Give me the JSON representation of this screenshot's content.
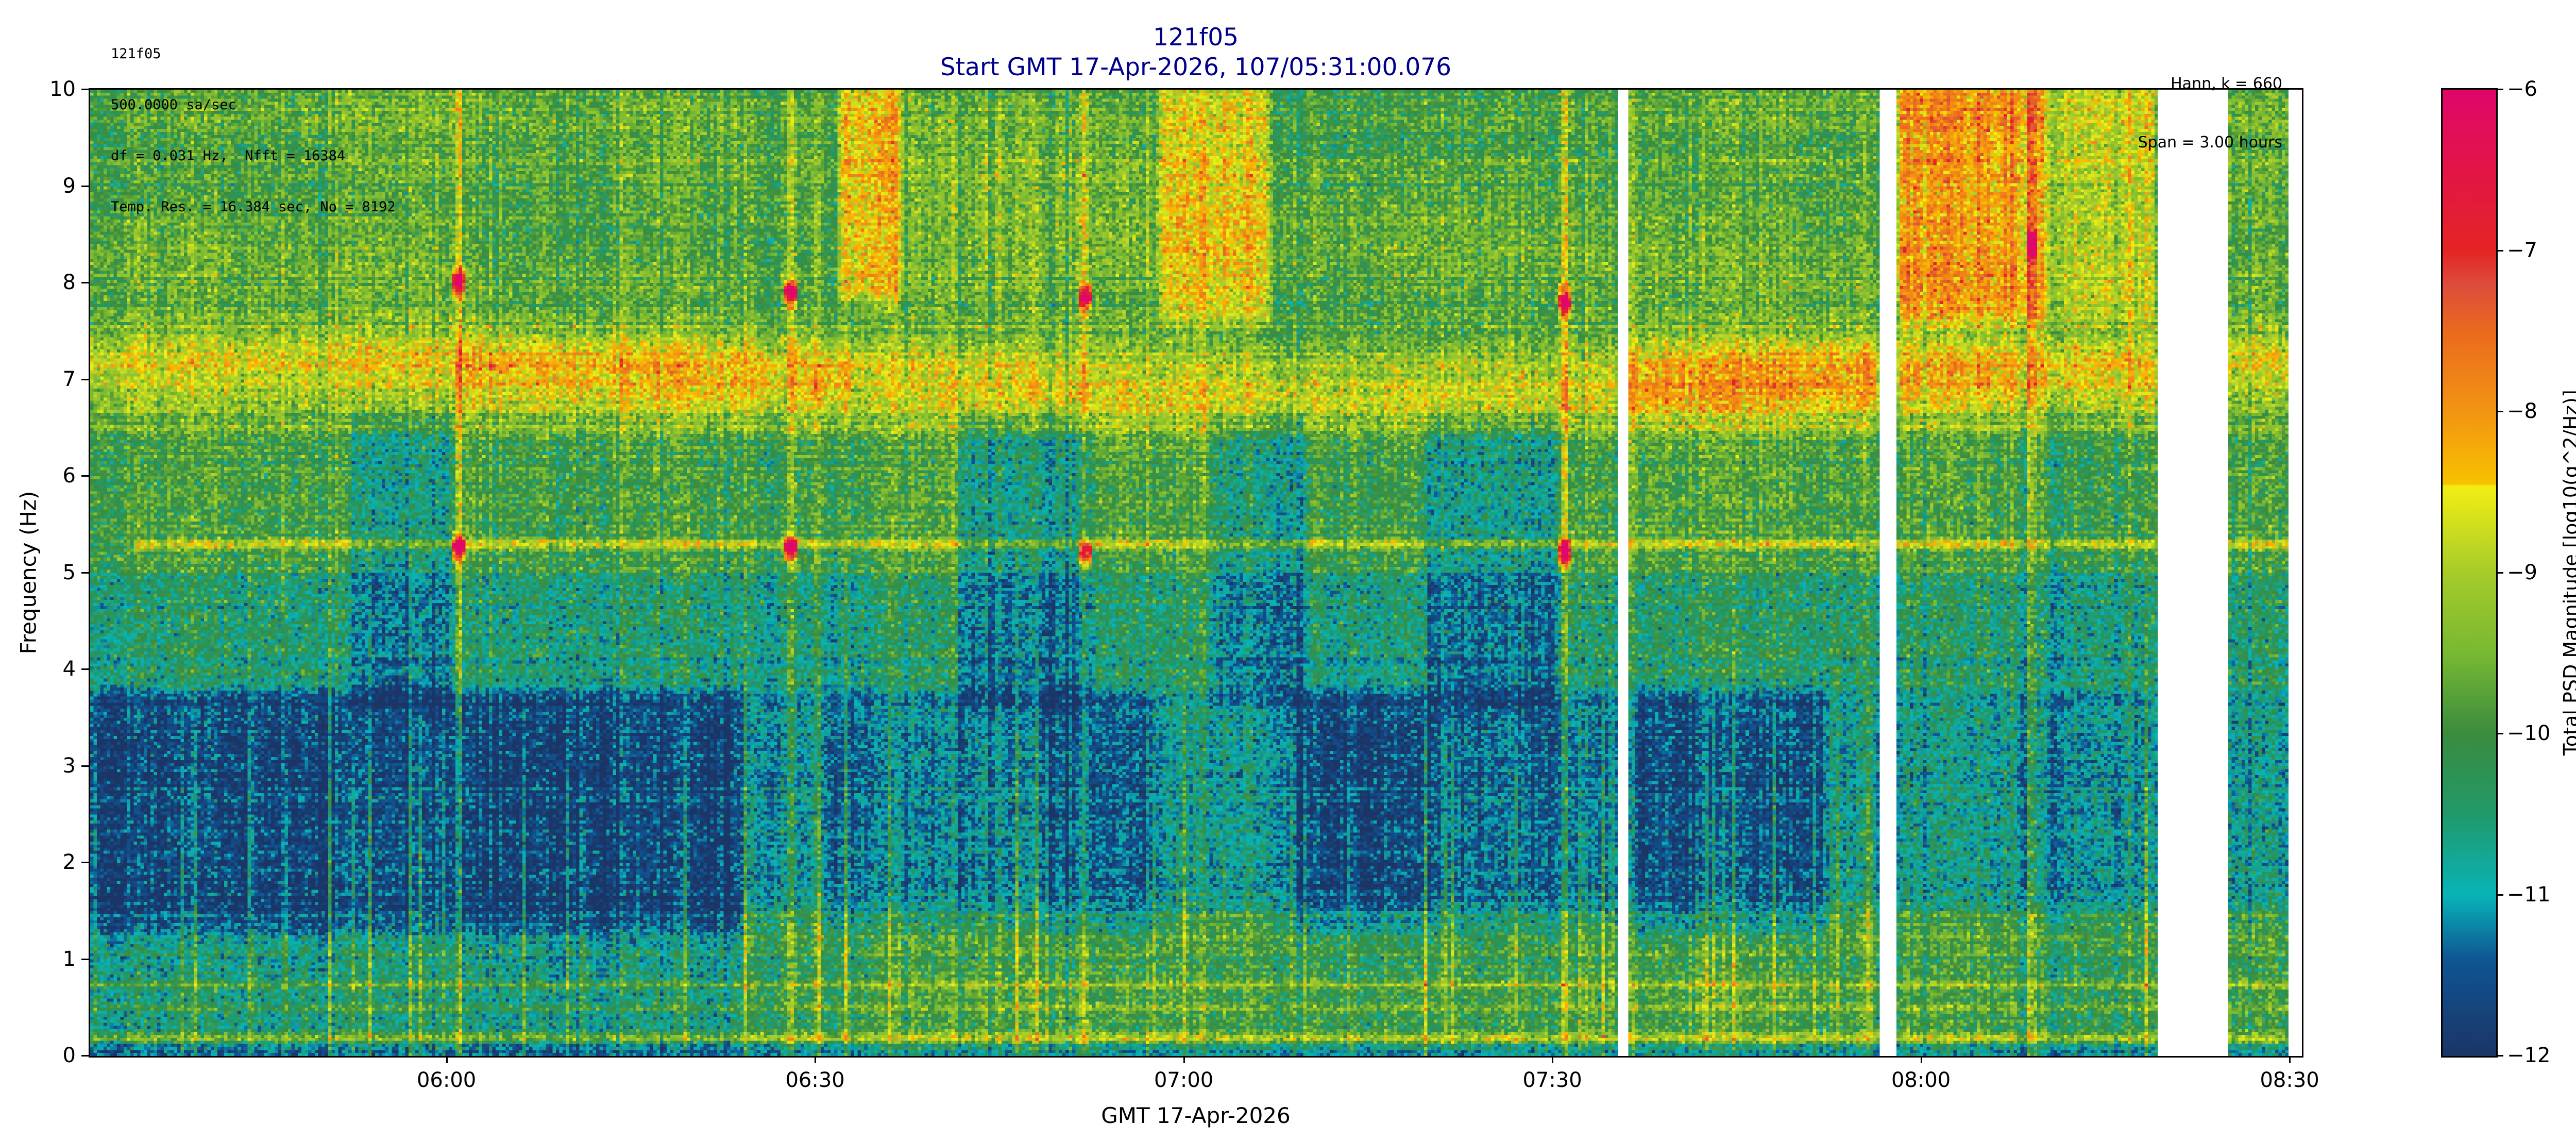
{
  "header": {
    "info_left": [
      "121f05",
      "500.0000 sa/sec",
      "df = 0.031 Hz,  Nfft = 16384",
      "Temp. Res. = 16.384 sec, No = 8192"
    ],
    "info_right": [
      "Hann, k = 660",
      "Span = 3.00 hours"
    ],
    "title": [
      "121f05",
      "Start GMT 17-Apr-2026, 107/05:31:00.076"
    ],
    "title_color": "#00008b"
  },
  "chart_data": {
    "type": "heatmap",
    "xlabel": "GMT 17-Apr-2026",
    "ylabel": "Frequency (Hz)",
    "colorbar_label": "Total PSD Magnitude [log10(g^2/Hz)]",
    "x_start": "05:31:00.076",
    "span_hours": 3.0,
    "x_ticks": [
      {
        "time": "06:00",
        "label": "06:00"
      },
      {
        "time": "06:30",
        "label": "06:30"
      },
      {
        "time": "07:00",
        "label": "07:00"
      },
      {
        "time": "07:30",
        "label": "07:30"
      },
      {
        "time": "08:00",
        "label": "08:00"
      },
      {
        "time": "08:30",
        "label": "08:30"
      }
    ],
    "ylim": [
      0,
      10
    ],
    "y_ticks": [
      0,
      1,
      2,
      3,
      4,
      5,
      6,
      7,
      8,
      9,
      10
    ],
    "y_tick_labels": [
      "0",
      "1",
      "2",
      "3",
      "4",
      "5",
      "6",
      "7",
      "8",
      "9",
      "10"
    ],
    "clim": [
      -12,
      -6
    ],
    "c_ticks": [
      -12,
      -11,
      -10,
      -9,
      -8,
      -7,
      -6
    ],
    "c_tick_labels": [
      "−12",
      "−11",
      "−10",
      "−9",
      "−8",
      "−7",
      "−6"
    ],
    "colormap": [
      [
        -12.0,
        "#1b3566"
      ],
      [
        -11.4,
        "#0f5594"
      ],
      [
        -11.0,
        "#08b4b8"
      ],
      [
        -10.5,
        "#21996a"
      ],
      [
        -10.0,
        "#3a8c3e"
      ],
      [
        -9.5,
        "#78b832"
      ],
      [
        -9.0,
        "#a6cc2a"
      ],
      [
        -8.46,
        "#f2ee12"
      ],
      [
        -8.45,
        "#f8c200"
      ],
      [
        -8.0,
        "#f29412"
      ],
      [
        -7.5,
        "#ea6a1e"
      ],
      [
        -7.2,
        "#dd4a3c"
      ],
      [
        -7.0,
        "#e42424"
      ],
      [
        -6.0,
        "#e0066a"
      ]
    ],
    "data_gaps": [
      [
        "07:35:20",
        "07:36:15"
      ],
      [
        "07:56:35",
        "07:58:05"
      ],
      [
        "08:19:10",
        "08:24:55"
      ],
      [
        "08:30:00",
        "08:31:00"
      ]
    ],
    "features": {
      "narrowband_lines": [
        {
          "freq": 5.3,
          "amp": 1.3,
          "start": "05:34:30",
          "end": "08:31:00"
        },
        {
          "freq": 0.2,
          "amp": 1.3,
          "start": "05:31:00",
          "end": "08:31:00"
        },
        {
          "freq": 0.5,
          "amp": 0.7,
          "start": "05:31:00",
          "end": "08:31:00"
        },
        {
          "freq": 0.75,
          "amp": 0.7,
          "start": "05:31:00",
          "end": "08:31:00"
        },
        {
          "freq": 1.2,
          "amp": 0.5,
          "start": "05:31:00",
          "end": "08:31:00"
        }
      ],
      "band_7hz": {
        "freq": 7.0,
        "amp": 1.0
      },
      "quiet_low_1p2_to_3p8hz": [
        [
          "05:31:00",
          "06:24:00",
          0.9
        ],
        [
          "06:31:00",
          "06:48:00",
          0.4
        ],
        [
          "06:48:00",
          "06:58:00",
          0.7
        ],
        [
          "07:09:00",
          "07:20:00",
          0.8
        ],
        [
          "07:20:00",
          "07:35:00",
          0.5
        ],
        [
          "07:36:15",
          "07:52:00",
          0.9
        ]
      ],
      "quiet_mid_4_to_6p4hz": [
        [
          "05:52:00",
          "06:00:30",
          0.9
        ],
        [
          "06:42:00",
          "06:52:30",
          0.9
        ],
        [
          "07:02:30",
          "07:10:00",
          0.7
        ],
        [
          "07:19:30",
          "07:30:30",
          0.8
        ]
      ],
      "band_7hz_boost": [
        [
          "06:01:00",
          "06:27:00",
          0.6
        ],
        [
          "06:28:00",
          "06:33:00",
          0.6
        ],
        [
          "07:36:15",
          "07:56:30",
          0.7
        ],
        [
          "07:58:05",
          "08:19:00",
          0.5
        ]
      ],
      "high_freq_bursts": [
        [
          "06:32:00",
          "06:37:00",
          7.8,
          1.3
        ],
        [
          "06:58:00",
          "07:07:00",
          7.6,
          1.1
        ],
        [
          "07:58:05",
          "08:10:00",
          7.6,
          1.7
        ],
        [
          "08:10:00",
          "08:19:00",
          7.6,
          1.0
        ]
      ],
      "low_freq_active": [
        [
          "06:24:00",
          "08:31:00",
          0.6
        ]
      ],
      "transients": [
        {
          "time": "06:01:00",
          "freqs": [
            5.25,
            8.0
          ]
        },
        {
          "time": "06:28:00",
          "freqs": [
            5.25,
            7.9
          ]
        },
        {
          "time": "06:52:00",
          "freqs": [
            5.2,
            7.85
          ]
        },
        {
          "time": "07:31:00",
          "freqs": [
            5.2,
            7.8
          ]
        },
        {
          "time": "08:09:00",
          "freqs": [
            8.4
          ]
        }
      ]
    }
  }
}
